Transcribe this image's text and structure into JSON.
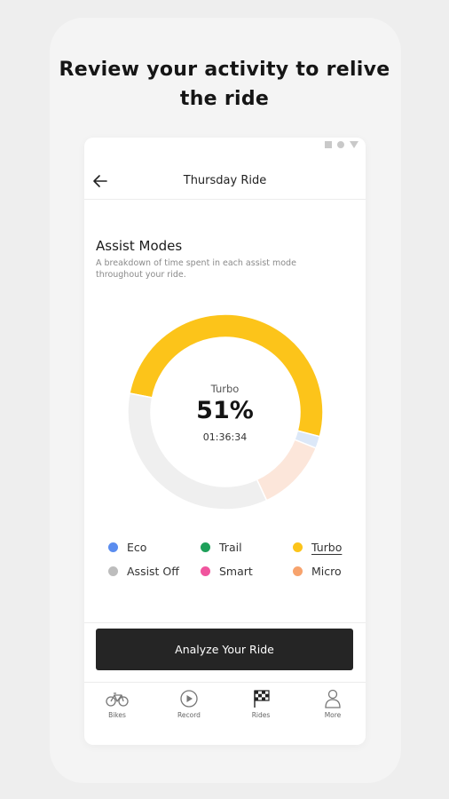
{
  "headline": "Review your activity to relive the ride",
  "header": {
    "title": "Thursday Ride"
  },
  "section": {
    "title": "Assist Modes",
    "description": "A breakdown of time spent in each assist mode throughout your ride."
  },
  "donut_center": {
    "mode": "Turbo",
    "percent": "51%",
    "time": "01:36:34"
  },
  "chart_data": {
    "type": "pie",
    "hole": true,
    "segments": [
      {
        "label": "Turbo",
        "value": 51,
        "color": "#FCC41A"
      },
      {
        "label": "Eco",
        "value": 2,
        "color": "#DCE8F8"
      },
      {
        "label": "Micro",
        "value": 12,
        "color": "#FCE6DA"
      },
      {
        "label": "Assist Off",
        "value": 35,
        "color": "#EFEFEF"
      }
    ]
  },
  "legend": [
    {
      "label": "Eco",
      "color": "#5B8DEF",
      "active": false
    },
    {
      "label": "Trail",
      "color": "#1EA05A",
      "active": false
    },
    {
      "label": "Turbo",
      "color": "#FCC41A",
      "active": true
    },
    {
      "label": "Assist Off",
      "color": "#BDBDBD",
      "active": false
    },
    {
      "label": "Smart",
      "color": "#F0559E",
      "active": false
    },
    {
      "label": "Micro",
      "color": "#F7A36D",
      "active": false
    }
  ],
  "cta": {
    "label": "Analyze Your Ride"
  },
  "nav": [
    {
      "label": "Bikes",
      "icon": "bike-icon"
    },
    {
      "label": "Record",
      "icon": "play-icon"
    },
    {
      "label": "Rides",
      "icon": "checkered-flag-icon"
    },
    {
      "label": "More",
      "icon": "person-icon"
    }
  ]
}
